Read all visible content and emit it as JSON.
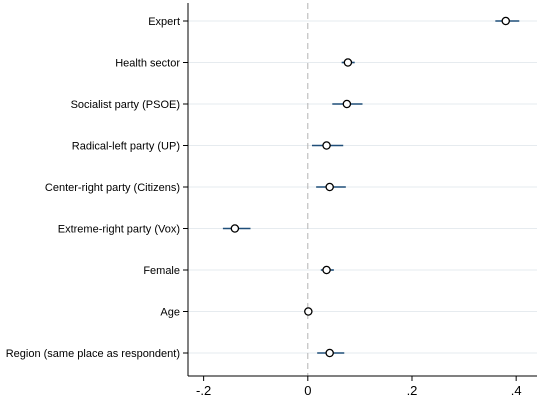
{
  "chart_data": {
    "type": "scatter",
    "subtype": "coefficient-plot",
    "title": "",
    "xlabel": "",
    "ylabel": "",
    "xlim": [
      -0.23,
      0.44
    ],
    "x_ticks": [
      {
        "value": -0.2,
        "label": "-.2"
      },
      {
        "value": 0,
        "label": "0"
      },
      {
        "value": 0.2,
        "label": ".2"
      },
      {
        "value": 0.4,
        "label": ".4"
      }
    ],
    "reference_line": {
      "x": 0,
      "style": "dashed"
    },
    "grid": true,
    "categories": [
      "Expert",
      "Health sector",
      "Socialist party (PSOE)",
      "Radical-left party (UP)",
      "Center-right party (Citizens)",
      "Extreme-right party (Vox)",
      "Female",
      "Age",
      "Region (same place as respondent)"
    ],
    "estimates": [
      0.38,
      0.077,
      0.075,
      0.036,
      0.042,
      -0.14,
      0.036,
      0.001,
      0.042
    ],
    "ci_low": [
      0.36,
      0.065,
      0.047,
      0.008,
      0.016,
      -0.163,
      0.025,
      -0.002,
      0.018
    ],
    "ci_high": [
      0.406,
      0.09,
      0.105,
      0.068,
      0.073,
      -0.11,
      0.05,
      0.004,
      0.07
    ],
    "colors": {
      "marker": "#000000",
      "ci": "#1f4e79",
      "grid": "#e6ebef",
      "zero_line": "#b3b3b3"
    }
  }
}
